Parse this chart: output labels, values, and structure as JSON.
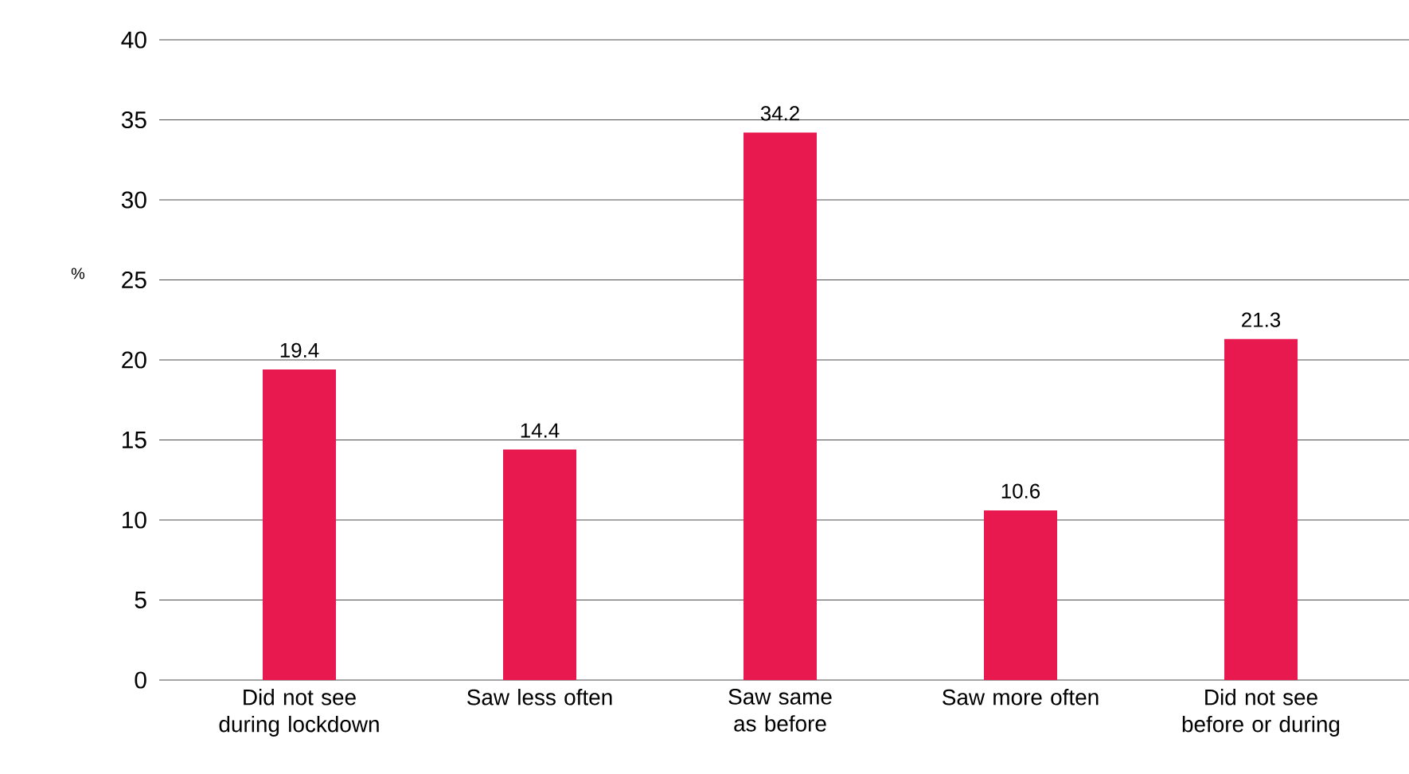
{
  "chart_data": {
    "type": "bar",
    "categories": [
      "Did not see during lockdown",
      "Saw less often",
      "Saw same as before",
      "Saw more often",
      "Did not see before or during"
    ],
    "values": [
      19.4,
      14.4,
      34.2,
      10.6,
      21.3
    ],
    "color": "#e8194f",
    "ylabel": "%",
    "ylim": [
      0,
      40
    ],
    "yticks": [
      0,
      5,
      10,
      15,
      20,
      25,
      30,
      35,
      40
    ],
    "grid": "y",
    "data_labels": true
  }
}
